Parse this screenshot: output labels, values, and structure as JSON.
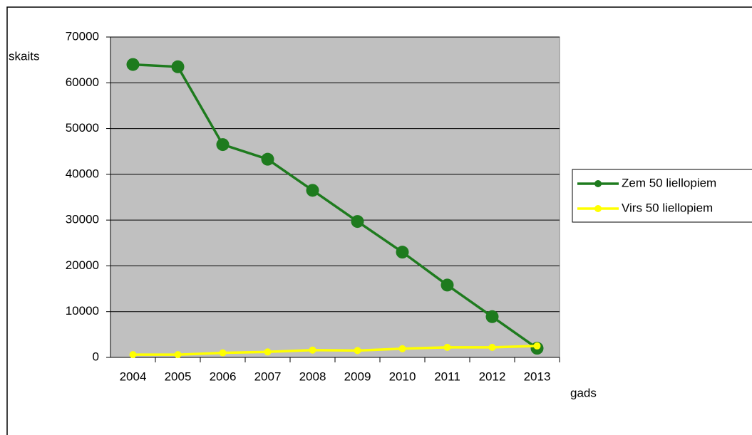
{
  "chart_data": {
    "type": "line",
    "x_label": "gads",
    "y_label": "skaits",
    "categories": [
      "2004",
      "2005",
      "2006",
      "2007",
      "2008",
      "2009",
      "2010",
      "2011",
      "2012",
      "2013"
    ],
    "series": [
      {
        "name": "Zem 50 liellopiem",
        "color": "#1e7b1e",
        "values": [
          64000,
          63500,
          46500,
          43300,
          36500,
          29700,
          23000,
          15800,
          8900,
          2000
        ]
      },
      {
        "name": "Virs 50 liellopiem",
        "color": "#ffff00",
        "values": [
          600,
          600,
          1000,
          1200,
          1600,
          1500,
          1900,
          2200,
          2200,
          2500
        ]
      }
    ],
    "ylim": [
      0,
      70000
    ],
    "yticks": [
      0,
      10000,
      20000,
      30000,
      40000,
      50000,
      60000,
      70000
    ],
    "grid": true,
    "legend": "right"
  }
}
